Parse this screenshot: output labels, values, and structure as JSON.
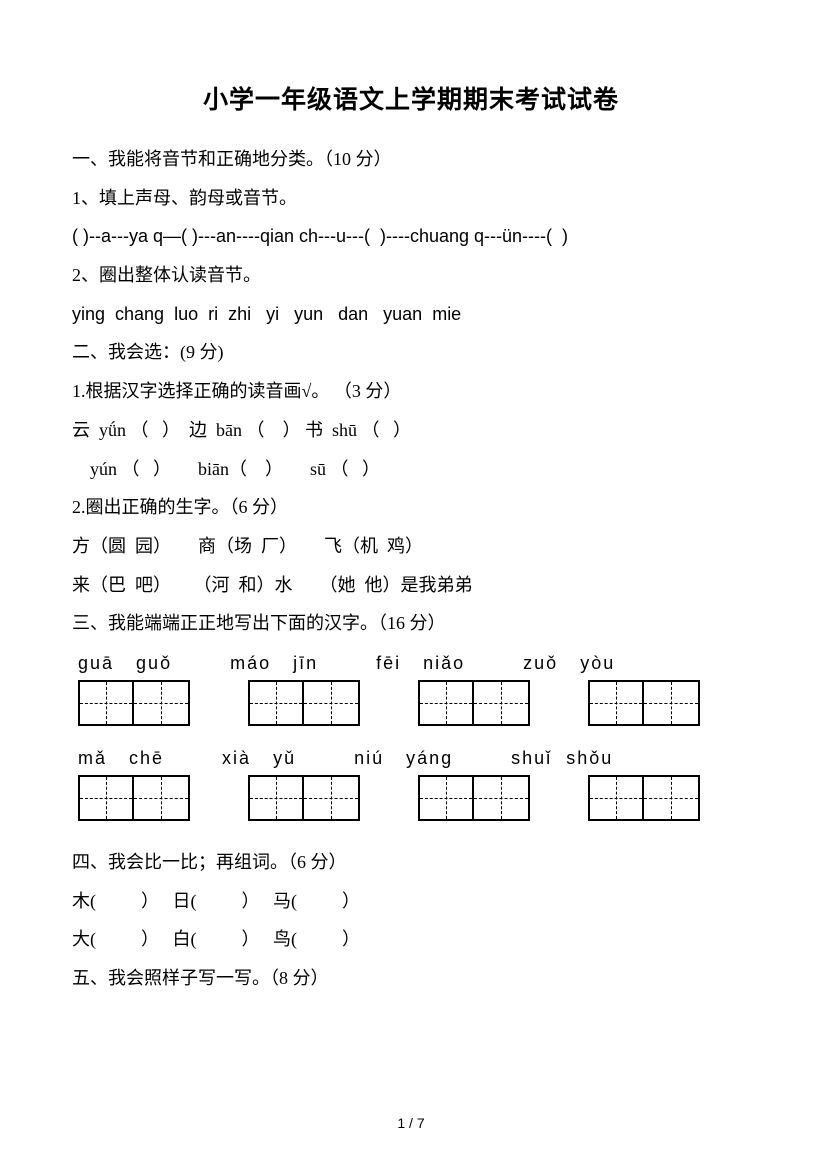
{
  "title": "小学一年级语文上学期期末考试试卷",
  "s1_head": "一、我能将音节和正确地分类。（10 分）",
  "s1_q1": "1、填上声母、韵母或音节。",
  "s1_q1_line": "( )--a---ya q—( )---an----qian ch---u---(  )----chuang q---ün----(  )",
  "s1_q2": "2、圈出整体认读音节。",
  "s1_q2_line": "ying  chang  luo  ri  zhi   yi   yun   dan   yuan  mie",
  "s2_head": "二、我会选：(9 分)",
  "s2_q1": "1.根据汉字选择正确的读音画√。 （3 分）",
  "s2_q1_l1": "云  yǘn （   ）  边  bān （    ） 书  shū （   ）",
  "s2_q1_l2": "    yún （   ）      biān（    ）      sū （   ）",
  "s2_q2": "2.圈出正确的生字。（6 分）",
  "s2_q2_l1": "方（圆  园）      商（场  厂）      飞（机  鸡）",
  "s2_q2_l2": "来（巴  吧）     （河  和）水      （她  他）是我弟弟",
  "s3_head": "三、我能端端正正地写出下面的汉字。（16 分）",
  "pinyin_rows": [
    [
      [
        "guā",
        "guǒ"
      ],
      [
        "máo",
        "jīn"
      ],
      [
        "fēi",
        "niǎo"
      ],
      [
        "zuǒ",
        "yòu"
      ]
    ],
    [
      [
        "mǎ",
        "chē"
      ],
      [
        "xià",
        "yǔ"
      ],
      [
        "niú",
        "yáng"
      ],
      [
        "shuǐ",
        "shǒu"
      ]
    ]
  ],
  "s4_head": "四、我会比一比；再组词。（6 分）",
  "s4_l1": "木(          ）   日(          ）   马(          ）",
  "s4_l2": "大(          ）   白(          ）   鸟(          ）",
  "s5_head": "五、我会照样子写一写。（8 分）",
  "footer": "1 / 7"
}
